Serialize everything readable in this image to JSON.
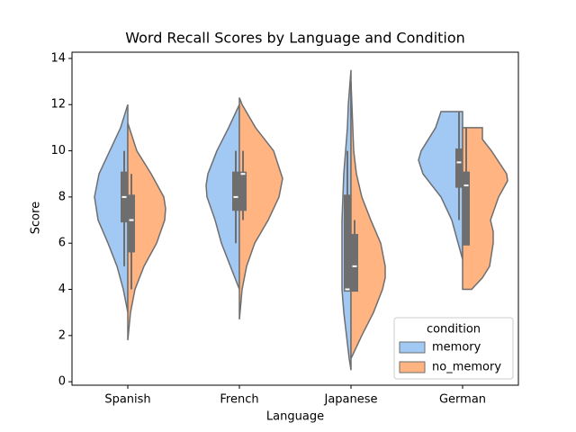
{
  "chart_data": {
    "type": "split-violin",
    "title": "Word Recall Scores by Language and Condition",
    "x_label": "Language",
    "y_label": "Score",
    "categories": [
      "Spanish",
      "French",
      "Japanese",
      "German"
    ],
    "ylim": [
      -0.15,
      14.27
    ],
    "yticks": [
      0,
      2,
      4,
      6,
      8,
      10,
      12,
      14
    ],
    "legend": {
      "title": "condition",
      "loc": "lower right"
    },
    "series": [
      {
        "name": "memory",
        "color": "#a1c9f4",
        "median": [
          8,
          8,
          4,
          9.5
        ],
        "q1": [
          6.9,
          7.4,
          3.9,
          8.4
        ],
        "q3": [
          9.1,
          9.1,
          8.1,
          10.1
        ],
        "whisker_low": [
          5,
          6,
          4,
          7
        ],
        "whisker_high": [
          10,
          10,
          10,
          11.7
        ],
        "kde": [
          {
            "y": [
              3,
              4,
              5,
              6,
              7,
              8,
              9,
              10,
              11,
              11.5,
              12
            ],
            "density": [
              0,
              0.1,
              0.24,
              0.44,
              0.66,
              0.74,
              0.64,
              0.4,
              0.16,
              0.08,
              0
            ]
          },
          {
            "y": [
              4,
              5,
              6,
              7,
              8,
              8.5,
              9,
              10,
              11,
              12
            ],
            "density": [
              0,
              0.2,
              0.4,
              0.54,
              0.72,
              0.74,
              0.7,
              0.5,
              0.24,
              0
            ]
          },
          {
            "y": [
              0.5,
              1,
              2,
              3,
              4,
              5,
              6,
              7,
              8,
              9,
              10,
              11,
              12,
              13,
              13.5
            ],
            "density": [
              0,
              0.04,
              0.1,
              0.16,
              0.2,
              0.2,
              0.2,
              0.2,
              0.18,
              0.16,
              0.12,
              0.08,
              0.06,
              0.02,
              0
            ]
          },
          {
            "y": [
              5.3,
              6,
              7,
              8,
              9,
              9.6,
              10,
              11,
              11.7
            ],
            "density": [
              0,
              0.1,
              0.24,
              0.48,
              0.88,
              0.98,
              0.92,
              0.6,
              0.48
            ]
          }
        ]
      },
      {
        "name": "no_memory",
        "color": "#ffb482",
        "median": [
          7,
          9,
          5,
          8.5
        ],
        "q1": [
          5.6,
          7.4,
          3.9,
          5.9
        ],
        "q3": [
          8.1,
          9.1,
          6.4,
          9.1
        ],
        "whisker_low": [
          4,
          7,
          3.9,
          6
        ],
        "whisker_high": [
          9,
          10,
          7,
          11
        ],
        "kde": [
          {
            "y": [
              1.8,
              3,
              4,
              5,
              6,
              7,
              7.5,
              8,
              9,
              10,
              11.2
            ],
            "density": [
              0,
              0.06,
              0.16,
              0.36,
              0.64,
              0.82,
              0.84,
              0.8,
              0.52,
              0.2,
              0
            ]
          },
          {
            "y": [
              2.7,
              4,
              5,
              6,
              7,
              8,
              8.8,
              10,
              11,
              12,
              12.3
            ],
            "density": [
              0,
              0.06,
              0.16,
              0.34,
              0.64,
              0.88,
              0.96,
              0.76,
              0.36,
              0.06,
              0
            ]
          },
          {
            "y": [
              1,
              2,
              3,
              4,
              4.5,
              5,
              6,
              7,
              8,
              9,
              10,
              11,
              12,
              13
            ],
            "density": [
              0,
              0.24,
              0.5,
              0.7,
              0.76,
              0.76,
              0.66,
              0.44,
              0.24,
              0.12,
              0.06,
              0.04,
              0.02,
              0
            ]
          },
          {
            "y": [
              4,
              4.5,
              5,
              6,
              6.5,
              7,
              8,
              8.7,
              9,
              10,
              10.5,
              11
            ],
            "density": [
              0.2,
              0.44,
              0.6,
              0.68,
              0.68,
              0.62,
              0.8,
              1,
              0.98,
              0.64,
              0.44,
              0.44
            ]
          }
        ]
      }
    ]
  }
}
